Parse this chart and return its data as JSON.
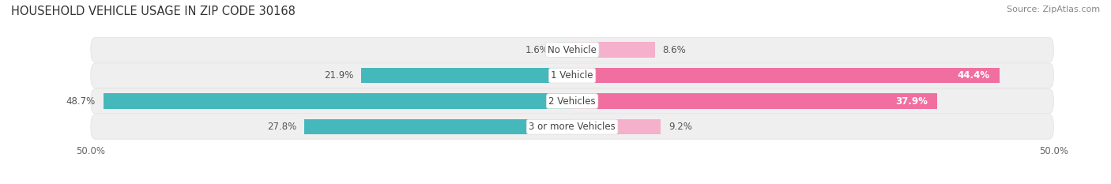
{
  "title": "HOUSEHOLD VEHICLE USAGE IN ZIP CODE 30168",
  "source": "Source: ZipAtlas.com",
  "categories": [
    "No Vehicle",
    "1 Vehicle",
    "2 Vehicles",
    "3 or more Vehicles"
  ],
  "owner_values": [
    1.6,
    21.9,
    48.7,
    27.8
  ],
  "renter_values": [
    8.6,
    44.4,
    37.9,
    9.2
  ],
  "owner_color_full": "#45b8bc",
  "owner_color_light": "#9dd6d8",
  "renter_color_full": "#f06fa0",
  "renter_color_light": "#f5b0cc",
  "bg_row_color": "#efefef",
  "bg_row_edge": "#e0e0e0",
  "axis_max": 50.0,
  "title_fontsize": 10.5,
  "source_fontsize": 8,
  "label_fontsize": 8.5,
  "axis_label_fontsize": 8.5,
  "category_fontsize": 8.5
}
